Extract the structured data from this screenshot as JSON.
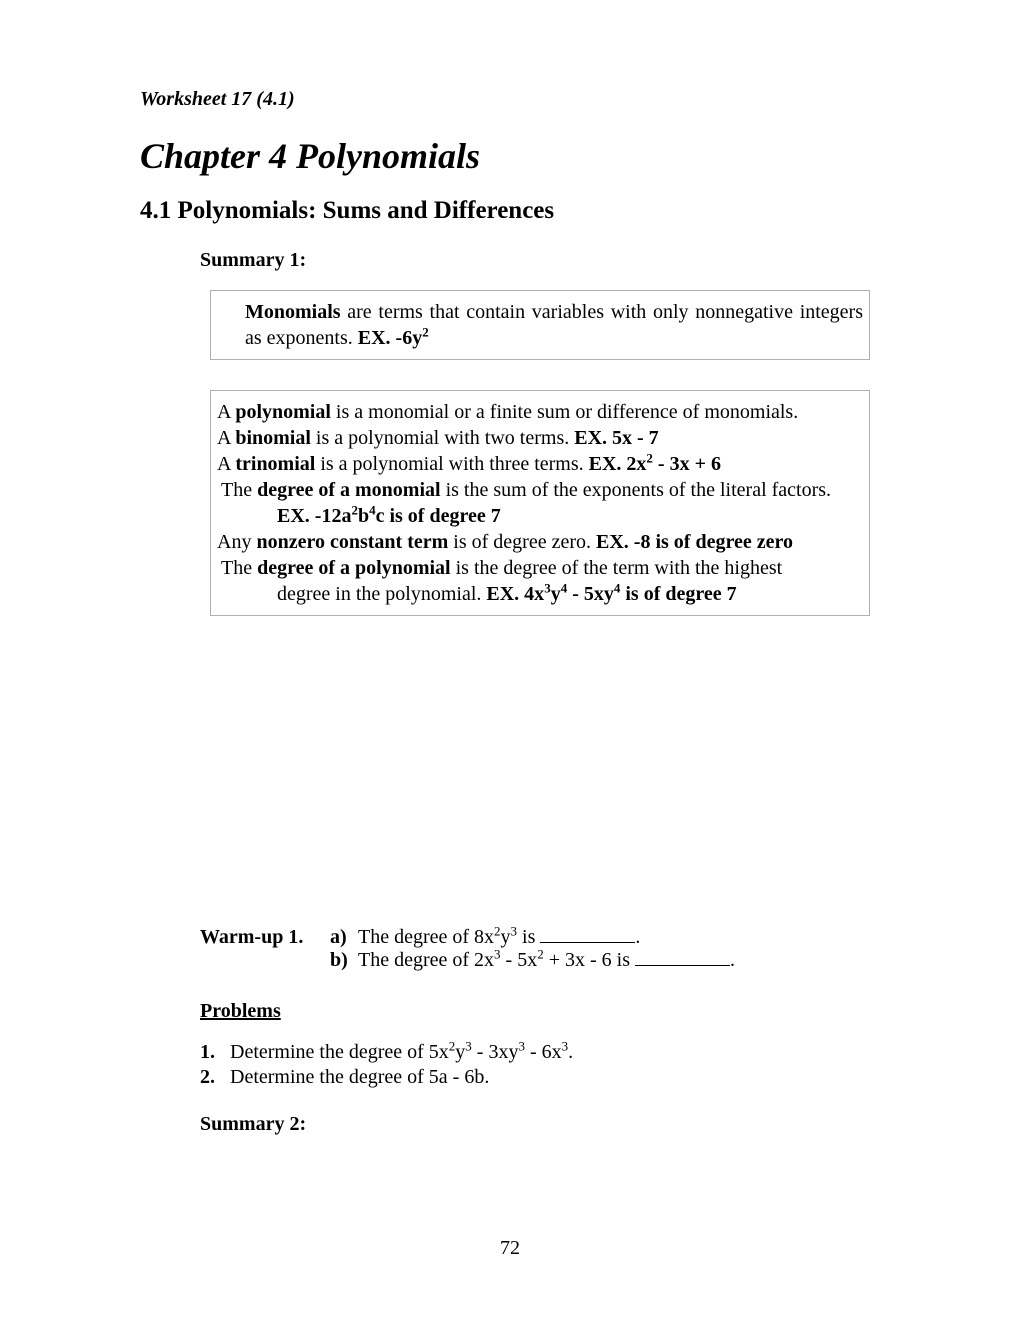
{
  "worksheet_label": "Worksheet 17  (4.1)",
  "chapter_title": "Chapter 4  Polynomials",
  "section_title": "4.1  Polynomials: Sums and Differences",
  "summary1_label": "Summary 1:",
  "box1": {
    "line1_pre": "Monomials",
    "line1_post": " are terms that contain variables with only nonnegative integers as exponents.  ",
    "line1_ex_label": "EX.  -6y",
    "line1_ex_sup": "2"
  },
  "box2": {
    "l1_a": "A ",
    "l1_b": "polynomial",
    "l1_c": " is a monomial or a finite sum or difference of monomials.",
    "l2_a": "A ",
    "l2_b": "binomial",
    "l2_c": " is a polynomial with two terms.  ",
    "l2_d": "EX.  5x - 7",
    "l3_a": "A ",
    "l3_b": "trinomial",
    "l3_c": " is a polynomial with three terms.  ",
    "l3_d_pre": "EX.  2x",
    "l3_d_sup": "2",
    "l3_d_post": " - 3x + 6",
    "l4_a": " The ",
    "l4_b": "degree of a monomial",
    "l4_c": " is the sum of the exponents of the literal factors.",
    "l5_pre": "EX.  -12a",
    "l5_s1": "2",
    "l5_mid1": "b",
    "l5_s2": "4",
    "l5_post": "c is of degree  7",
    "l6_a": "Any ",
    "l6_b": "nonzero constant term",
    "l6_c": " is of degree zero.  ",
    "l6_d": "EX. -8 is of degree zero",
    "l7_a": " The ",
    "l7_b": "degree of a polynomial",
    "l7_c": " is the degree of the term with the highest",
    "l8_a": "degree in the polynomial.  ",
    "l8_b_pre": "EX. 4x",
    "l8_b_s1": "3",
    "l8_b_mid1": "y",
    "l8_b_s2": "4",
    "l8_b_mid2": " - 5xy",
    "l8_b_s3": "4",
    "l8_b_post": " is of degree 7"
  },
  "warmup": {
    "label": "Warm-up 1.",
    "a_label": "a)",
    "a_pre": "The degree of 8x",
    "a_s1": "2",
    "a_mid": "y",
    "a_s2": "3",
    "a_post": " is ",
    "b_label": "b)",
    "b_pre": "The degree of 2x",
    "b_s1": "3",
    "b_mid1": " - 5x",
    "b_s2": "2",
    "b_post": " + 3x - 6 is "
  },
  "problems_label": "Problems",
  "p1_num": "1.",
  "p1_pre": "Determine the degree of 5x",
  "p1_s1": "2",
  "p1_mid1": "y",
  "p1_s2": "3",
  "p1_mid2": " - 3xy",
  "p1_s3": "3",
  "p1_mid3": " - 6x",
  "p1_s4": "3",
  "p1_post": ".",
  "p2_num": "2.",
  "p2_text": "Determine the degree of 5a - 6b.",
  "summary2_label": "Summary 2:",
  "page_number": "72"
}
